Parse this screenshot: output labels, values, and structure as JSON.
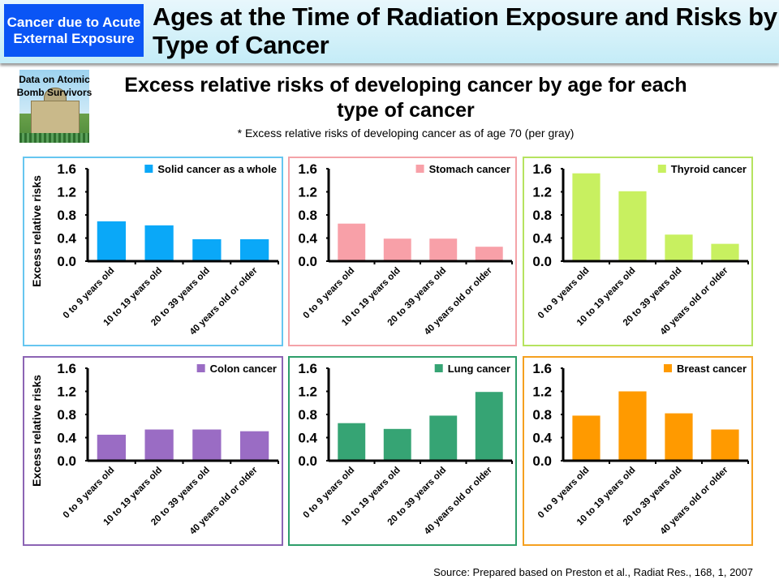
{
  "header": {
    "tag": "Cancer due to Acute External Exposure",
    "title": "Ages at the Time of Radiation Exposure and Risks by Type of Cancer"
  },
  "photo_label": "Data on Atomic Bomb Survivors",
  "subtitle": "Excess relative risks of developing cancer by age for each type of cancer",
  "note": "* Excess relative risks of developing cancer as of age 70 (per gray)",
  "source": "Source: Prepared based on Preston et al., Radiat Res., 168, 1, 2007",
  "chart_data": [
    {
      "type": "bar",
      "title": "",
      "legend": "Solid cancer as a whole",
      "ylabel": "Excess relative risks",
      "categories": [
        "0 to 9 years old",
        "10 to 19 years old",
        "20 to 39 years old",
        "40 years old or older"
      ],
      "values": [
        0.69,
        0.62,
        0.38,
        0.38
      ],
      "ylim": [
        0,
        1.6
      ],
      "yticks": [
        "0.0",
        "0.4",
        "0.8",
        "1.2",
        "1.6"
      ],
      "bar_color": "#0aa8f8",
      "border_color": "#66c6f0",
      "legend_placement": "top-right",
      "grid": false
    },
    {
      "type": "bar",
      "title": "",
      "legend": "Stomach cancer",
      "ylabel": "",
      "categories": [
        "0 to 9 years old",
        "10 to 19 years old",
        "20 to 39 years old",
        "40 years old or older"
      ],
      "values": [
        0.65,
        0.39,
        0.39,
        0.25
      ],
      "ylim": [
        0,
        1.6
      ],
      "yticks": [
        "0.0",
        "0.4",
        "0.8",
        "1.2",
        "1.6"
      ],
      "bar_color": "#f8a0a8",
      "border_color": "#f4a3a8",
      "legend_placement": "top-right",
      "grid": false
    },
    {
      "type": "bar",
      "title": "",
      "legend": "Thyroid cancer",
      "ylabel": "",
      "categories": [
        "0 to 9 years old",
        "10 to 19 years old",
        "20 to 39 years old",
        "40 years old or older"
      ],
      "values": [
        1.52,
        1.21,
        0.46,
        0.3
      ],
      "ylim": [
        0,
        1.6
      ],
      "yticks": [
        "0.0",
        "0.4",
        "0.8",
        "1.2",
        "1.6"
      ],
      "bar_color": "#c8f060",
      "border_color": "#b6e35f",
      "legend_placement": "top-right",
      "grid": false
    },
    {
      "type": "bar",
      "title": "",
      "legend": "Colon cancer",
      "ylabel": "Excess relative risks",
      "categories": [
        "0 to 9 years old",
        "10 to 19 years old",
        "20 to 39 years old",
        "40 years old or older"
      ],
      "values": [
        0.45,
        0.54,
        0.54,
        0.51
      ],
      "ylim": [
        0,
        1.6
      ],
      "yticks": [
        "0.0",
        "0.4",
        "0.8",
        "1.2",
        "1.6"
      ],
      "bar_color": "#9a6cc4",
      "border_color": "#8c64b4",
      "legend_placement": "top-right",
      "grid": false
    },
    {
      "type": "bar",
      "title": "",
      "legend": "Lung cancer",
      "ylabel": "",
      "categories": [
        "0 to 9 years old",
        "10 to 19 years old",
        "20 to 39 years old",
        "40 years old or older"
      ],
      "values": [
        0.65,
        0.55,
        0.78,
        1.19
      ],
      "ylim": [
        0,
        1.6
      ],
      "yticks": [
        "0.0",
        "0.4",
        "0.8",
        "1.2",
        "1.6"
      ],
      "bar_color": "#36a474",
      "border_color": "#2e9e6a",
      "legend_placement": "top-right",
      "grid": false
    },
    {
      "type": "bar",
      "title": "",
      "legend": "Breast cancer",
      "ylabel": "",
      "categories": [
        "0 to 9 years old",
        "10 to 19 years old",
        "20 to 39 years old",
        "40 years old or older"
      ],
      "values": [
        0.78,
        1.2,
        0.82,
        0.54
      ],
      "ylim": [
        0,
        1.6
      ],
      "yticks": [
        "0.0",
        "0.4",
        "0.8",
        "1.2",
        "1.6"
      ],
      "bar_color": "#ff9a00",
      "border_color": "#f5a020",
      "legend_placement": "top-right",
      "grid": false
    }
  ]
}
